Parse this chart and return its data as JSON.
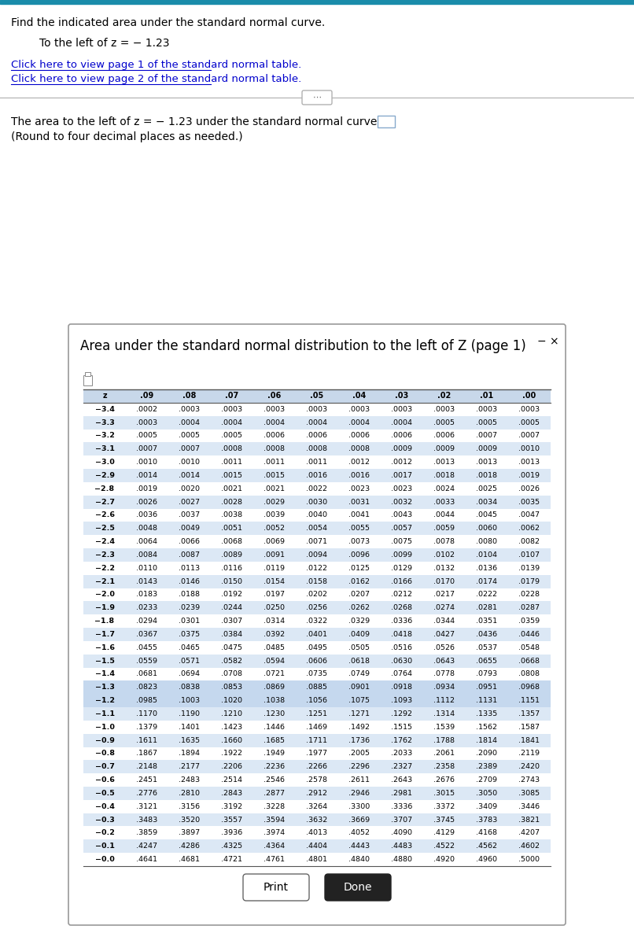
{
  "title_text": "Find the indicated area under the standard normal curve.",
  "subtitle_text": "To the left of z = − 1.23",
  "link1": "Click here to view page 1 of the standard normal table.",
  "link2": "Click here to view page 2 of the standard normal table.",
  "answer_text": "The area to the left of z = − 1.23 under the standard normal curve is",
  "round_text": "(Round to four decimal places as needed.)",
  "dialog_title": "Area under the standard normal distribution to the left of Z (page 1)",
  "col_headers": [
    "z",
    ".09",
    ".08",
    ".07",
    ".06",
    ".05",
    ".04",
    ".03",
    ".02",
    ".01",
    ".00"
  ],
  "rows": [
    [
      "−3.4",
      ".0002",
      ".0003",
      ".0003",
      ".0003",
      ".0003",
      ".0003",
      ".0003",
      ".0003",
      ".0003",
      ".0003"
    ],
    [
      "−3.3",
      ".0003",
      ".0004",
      ".0004",
      ".0004",
      ".0004",
      ".0004",
      ".0004",
      ".0005",
      ".0005",
      ".0005"
    ],
    [
      "−3.2",
      ".0005",
      ".0005",
      ".0005",
      ".0006",
      ".0006",
      ".0006",
      ".0006",
      ".0006",
      ".0007",
      ".0007"
    ],
    [
      "−3.1",
      ".0007",
      ".0007",
      ".0008",
      ".0008",
      ".0008",
      ".0008",
      ".0009",
      ".0009",
      ".0009",
      ".0010"
    ],
    [
      "−3.0",
      ".0010",
      ".0010",
      ".0011",
      ".0011",
      ".0011",
      ".0012",
      ".0012",
      ".0013",
      ".0013",
      ".0013"
    ],
    [
      "−2.9",
      ".0014",
      ".0014",
      ".0015",
      ".0015",
      ".0016",
      ".0016",
      ".0017",
      ".0018",
      ".0018",
      ".0019"
    ],
    [
      "−2.8",
      ".0019",
      ".0020",
      ".0021",
      ".0021",
      ".0022",
      ".0023",
      ".0023",
      ".0024",
      ".0025",
      ".0026"
    ],
    [
      "−2.7",
      ".0026",
      ".0027",
      ".0028",
      ".0029",
      ".0030",
      ".0031",
      ".0032",
      ".0033",
      ".0034",
      ".0035"
    ],
    [
      "−2.6",
      ".0036",
      ".0037",
      ".0038",
      ".0039",
      ".0040",
      ".0041",
      ".0043",
      ".0044",
      ".0045",
      ".0047"
    ],
    [
      "−2.5",
      ".0048",
      ".0049",
      ".0051",
      ".0052",
      ".0054",
      ".0055",
      ".0057",
      ".0059",
      ".0060",
      ".0062"
    ],
    [
      "−2.4",
      ".0064",
      ".0066",
      ".0068",
      ".0069",
      ".0071",
      ".0073",
      ".0075",
      ".0078",
      ".0080",
      ".0082"
    ],
    [
      "−2.3",
      ".0084",
      ".0087",
      ".0089",
      ".0091",
      ".0094",
      ".0096",
      ".0099",
      ".0102",
      ".0104",
      ".0107"
    ],
    [
      "−2.2",
      ".0110",
      ".0113",
      ".0116",
      ".0119",
      ".0122",
      ".0125",
      ".0129",
      ".0132",
      ".0136",
      ".0139"
    ],
    [
      "−2.1",
      ".0143",
      ".0146",
      ".0150",
      ".0154",
      ".0158",
      ".0162",
      ".0166",
      ".0170",
      ".0174",
      ".0179"
    ],
    [
      "−2.0",
      ".0183",
      ".0188",
      ".0192",
      ".0197",
      ".0202",
      ".0207",
      ".0212",
      ".0217",
      ".0222",
      ".0228"
    ],
    [
      "−1.9",
      ".0233",
      ".0239",
      ".0244",
      ".0250",
      ".0256",
      ".0262",
      ".0268",
      ".0274",
      ".0281",
      ".0287"
    ],
    [
      "−1.8",
      ".0294",
      ".0301",
      ".0307",
      ".0314",
      ".0322",
      ".0329",
      ".0336",
      ".0344",
      ".0351",
      ".0359"
    ],
    [
      "−1.7",
      ".0367",
      ".0375",
      ".0384",
      ".0392",
      ".0401",
      ".0409",
      ".0418",
      ".0427",
      ".0436",
      ".0446"
    ],
    [
      "−1.6",
      ".0455",
      ".0465",
      ".0475",
      ".0485",
      ".0495",
      ".0505",
      ".0516",
      ".0526",
      ".0537",
      ".0548"
    ],
    [
      "−1.5",
      ".0559",
      ".0571",
      ".0582",
      ".0594",
      ".0606",
      ".0618",
      ".0630",
      ".0643",
      ".0655",
      ".0668"
    ],
    [
      "−1.4",
      ".0681",
      ".0694",
      ".0708",
      ".0721",
      ".0735",
      ".0749",
      ".0764",
      ".0778",
      ".0793",
      ".0808"
    ],
    [
      "−1.3",
      ".0823",
      ".0838",
      ".0853",
      ".0869",
      ".0885",
      ".0901",
      ".0918",
      ".0934",
      ".0951",
      ".0968"
    ],
    [
      "−1.2",
      ".0985",
      ".1003",
      ".1020",
      ".1038",
      ".1056",
      ".1075",
      ".1093",
      ".1112",
      ".1131",
      ".1151"
    ],
    [
      "−1.1",
      ".1170",
      ".1190",
      ".1210",
      ".1230",
      ".1251",
      ".1271",
      ".1292",
      ".1314",
      ".1335",
      ".1357"
    ],
    [
      "−1.0",
      ".1379",
      ".1401",
      ".1423",
      ".1446",
      ".1469",
      ".1492",
      ".1515",
      ".1539",
      ".1562",
      ".1587"
    ],
    [
      "−0.9",
      ".1611",
      ".1635",
      ".1660",
      ".1685",
      ".1711",
      ".1736",
      ".1762",
      ".1788",
      ".1814",
      ".1841"
    ],
    [
      "−0.8",
      ".1867",
      ".1894",
      ".1922",
      ".1949",
      ".1977",
      ".2005",
      ".2033",
      ".2061",
      ".2090",
      ".2119"
    ],
    [
      "−0.7",
      ".2148",
      ".2177",
      ".2206",
      ".2236",
      ".2266",
      ".2296",
      ".2327",
      ".2358",
      ".2389",
      ".2420"
    ],
    [
      "−0.6",
      ".2451",
      ".2483",
      ".2514",
      ".2546",
      ".2578",
      ".2611",
      ".2643",
      ".2676",
      ".2709",
      ".2743"
    ],
    [
      "−0.5",
      ".2776",
      ".2810",
      ".2843",
      ".2877",
      ".2912",
      ".2946",
      ".2981",
      ".3015",
      ".3050",
      ".3085"
    ],
    [
      "−0.4",
      ".3121",
      ".3156",
      ".3192",
      ".3228",
      ".3264",
      ".3300",
      ".3336",
      ".3372",
      ".3409",
      ".3446"
    ],
    [
      "−0.3",
      ".3483",
      ".3520",
      ".3557",
      ".3594",
      ".3632",
      ".3669",
      ".3707",
      ".3745",
      ".3783",
      ".3821"
    ],
    [
      "−0.2",
      ".3859",
      ".3897",
      ".3936",
      ".3974",
      ".4013",
      ".4052",
      ".4090",
      ".4129",
      ".4168",
      ".4207"
    ],
    [
      "−0.1",
      ".4247",
      ".4286",
      ".4325",
      ".4364",
      ".4404",
      ".4443",
      ".4483",
      ".4522",
      ".4562",
      ".4602"
    ],
    [
      "−0.0",
      ".4641",
      ".4681",
      ".4721",
      ".4761",
      ".4801",
      ".4840",
      ".4880",
      ".4920",
      ".4960",
      ".5000"
    ]
  ],
  "top_bar_color": "#1a8caa",
  "bg_color": "#ffffff",
  "link_color": "#0000cc",
  "alt_color": "#dce8f5",
  "highlight_color": "#c5d8ee"
}
